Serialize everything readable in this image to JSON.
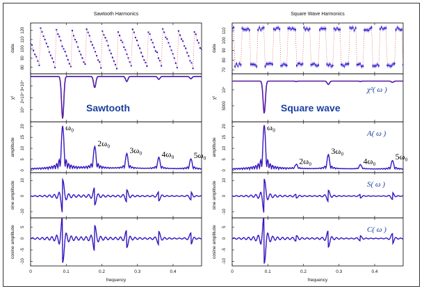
{
  "figure": {
    "xlabel": "frequency",
    "x_ticks": [
      "0",
      "0.1",
      "0.2",
      "0.3",
      "0.4"
    ],
    "row_labels": [
      "data",
      "χ²",
      "amplitude",
      "sine amplitude",
      "cosine amplitude"
    ],
    "curve_labels": [
      "χ²( ω )",
      "A( ω )",
      "S( ω )",
      "C( ω )"
    ],
    "harmonic_labels": [
      "ω₀",
      "2ω₀",
      "3ω₀",
      "4ω₀",
      "5ω₀"
    ]
  },
  "chart_data": [
    {
      "type": "multi-panel",
      "title": "Sawtooth Harmonics",
      "label": "Sawtooth",
      "xlabel": "frequency",
      "x_ticks": [
        0,
        0.1,
        0.2,
        0.3,
        0.4
      ],
      "xlim": [
        0,
        0.48
      ],
      "fundamental": 0.09,
      "colors": {
        "series": "#1010e0",
        "fit": "#e02020"
      },
      "panels": [
        {
          "ylabel": "data",
          "y_ticks": [
            80,
            90,
            100,
            110,
            120
          ],
          "ylim": [
            73,
            128
          ]
        },
        {
          "ylabel": "χ²",
          "y_ticks": [
            "10⁴",
            "2×10⁴",
            "3×10⁴"
          ],
          "ylim": [
            3500,
            31000
          ]
        },
        {
          "ylabel": "amplitude",
          "y_ticks": [
            0,
            5,
            10,
            15,
            20
          ],
          "ylim": [
            -1,
            22
          ],
          "harmonics": [
            {
              "label": "ω₀",
              "frequency": 0.09,
              "amplitude": 19.5
            },
            {
              "label": "2ω₀",
              "frequency": 0.18,
              "amplitude": 10
            },
            {
              "label": "3ω₀",
              "frequency": 0.27,
              "amplitude": 6.8
            },
            {
              "label": "4ω₀",
              "frequency": 0.36,
              "amplitude": 5.2
            },
            {
              "label": "5ω₀",
              "frequency": 0.45,
              "amplitude": 4.6
            }
          ]
        },
        {
          "ylabel": "sine amplitude",
          "y_ticks": [
            -10,
            0,
            10
          ],
          "ylim": [
            -14,
            15
          ]
        },
        {
          "ylabel": "cosine amplitude",
          "y_ticks": [
            -10,
            -5,
            0,
            5
          ],
          "ylim": [
            -12,
            9
          ]
        }
      ]
    },
    {
      "type": "multi-panel",
      "title": "Square Wave Harmonics",
      "label": "Square wave",
      "xlabel": "frequency",
      "x_ticks": [
        0,
        0.1,
        0.2,
        0.3,
        0.4
      ],
      "xlim": [
        0,
        0.48
      ],
      "fundamental": 0.09,
      "colors": {
        "series": "#1010e0",
        "fit": "#e02020"
      },
      "panels": [
        {
          "ylabel": "data",
          "y_ticks": [
            70,
            80,
            90,
            100,
            110
          ],
          "ylim": [
            66,
            118
          ]
        },
        {
          "ylabel": "χ²",
          "y_ticks": [
            "5000",
            "10⁴"
          ],
          "ylim": [
            900,
            10800
          ]
        },
        {
          "ylabel": "amplitude",
          "y_ticks": [
            0,
            5,
            10,
            15,
            20
          ],
          "ylim": [
            -1,
            22
          ],
          "harmonics": [
            {
              "label": "ω₀",
              "frequency": 0.09,
              "amplitude": 20
            },
            {
              "label": "2ω₀",
              "frequency": 0.18,
              "amplitude": 2
            },
            {
              "label": "3ω₀",
              "frequency": 0.27,
              "amplitude": 6.5
            },
            {
              "label": "4ω₀",
              "frequency": 0.36,
              "amplitude": 2
            },
            {
              "label": "5ω₀",
              "frequency": 0.45,
              "amplitude": 4
            }
          ]
        },
        {
          "ylabel": "sine amplitude",
          "y_ticks": [
            -10,
            0,
            10
          ],
          "ylim": [
            -14,
            15
          ]
        },
        {
          "ylabel": "cosine amplitude",
          "y_ticks": [
            -10,
            -5,
            0,
            5
          ],
          "ylim": [
            -12,
            9
          ]
        }
      ]
    }
  ]
}
